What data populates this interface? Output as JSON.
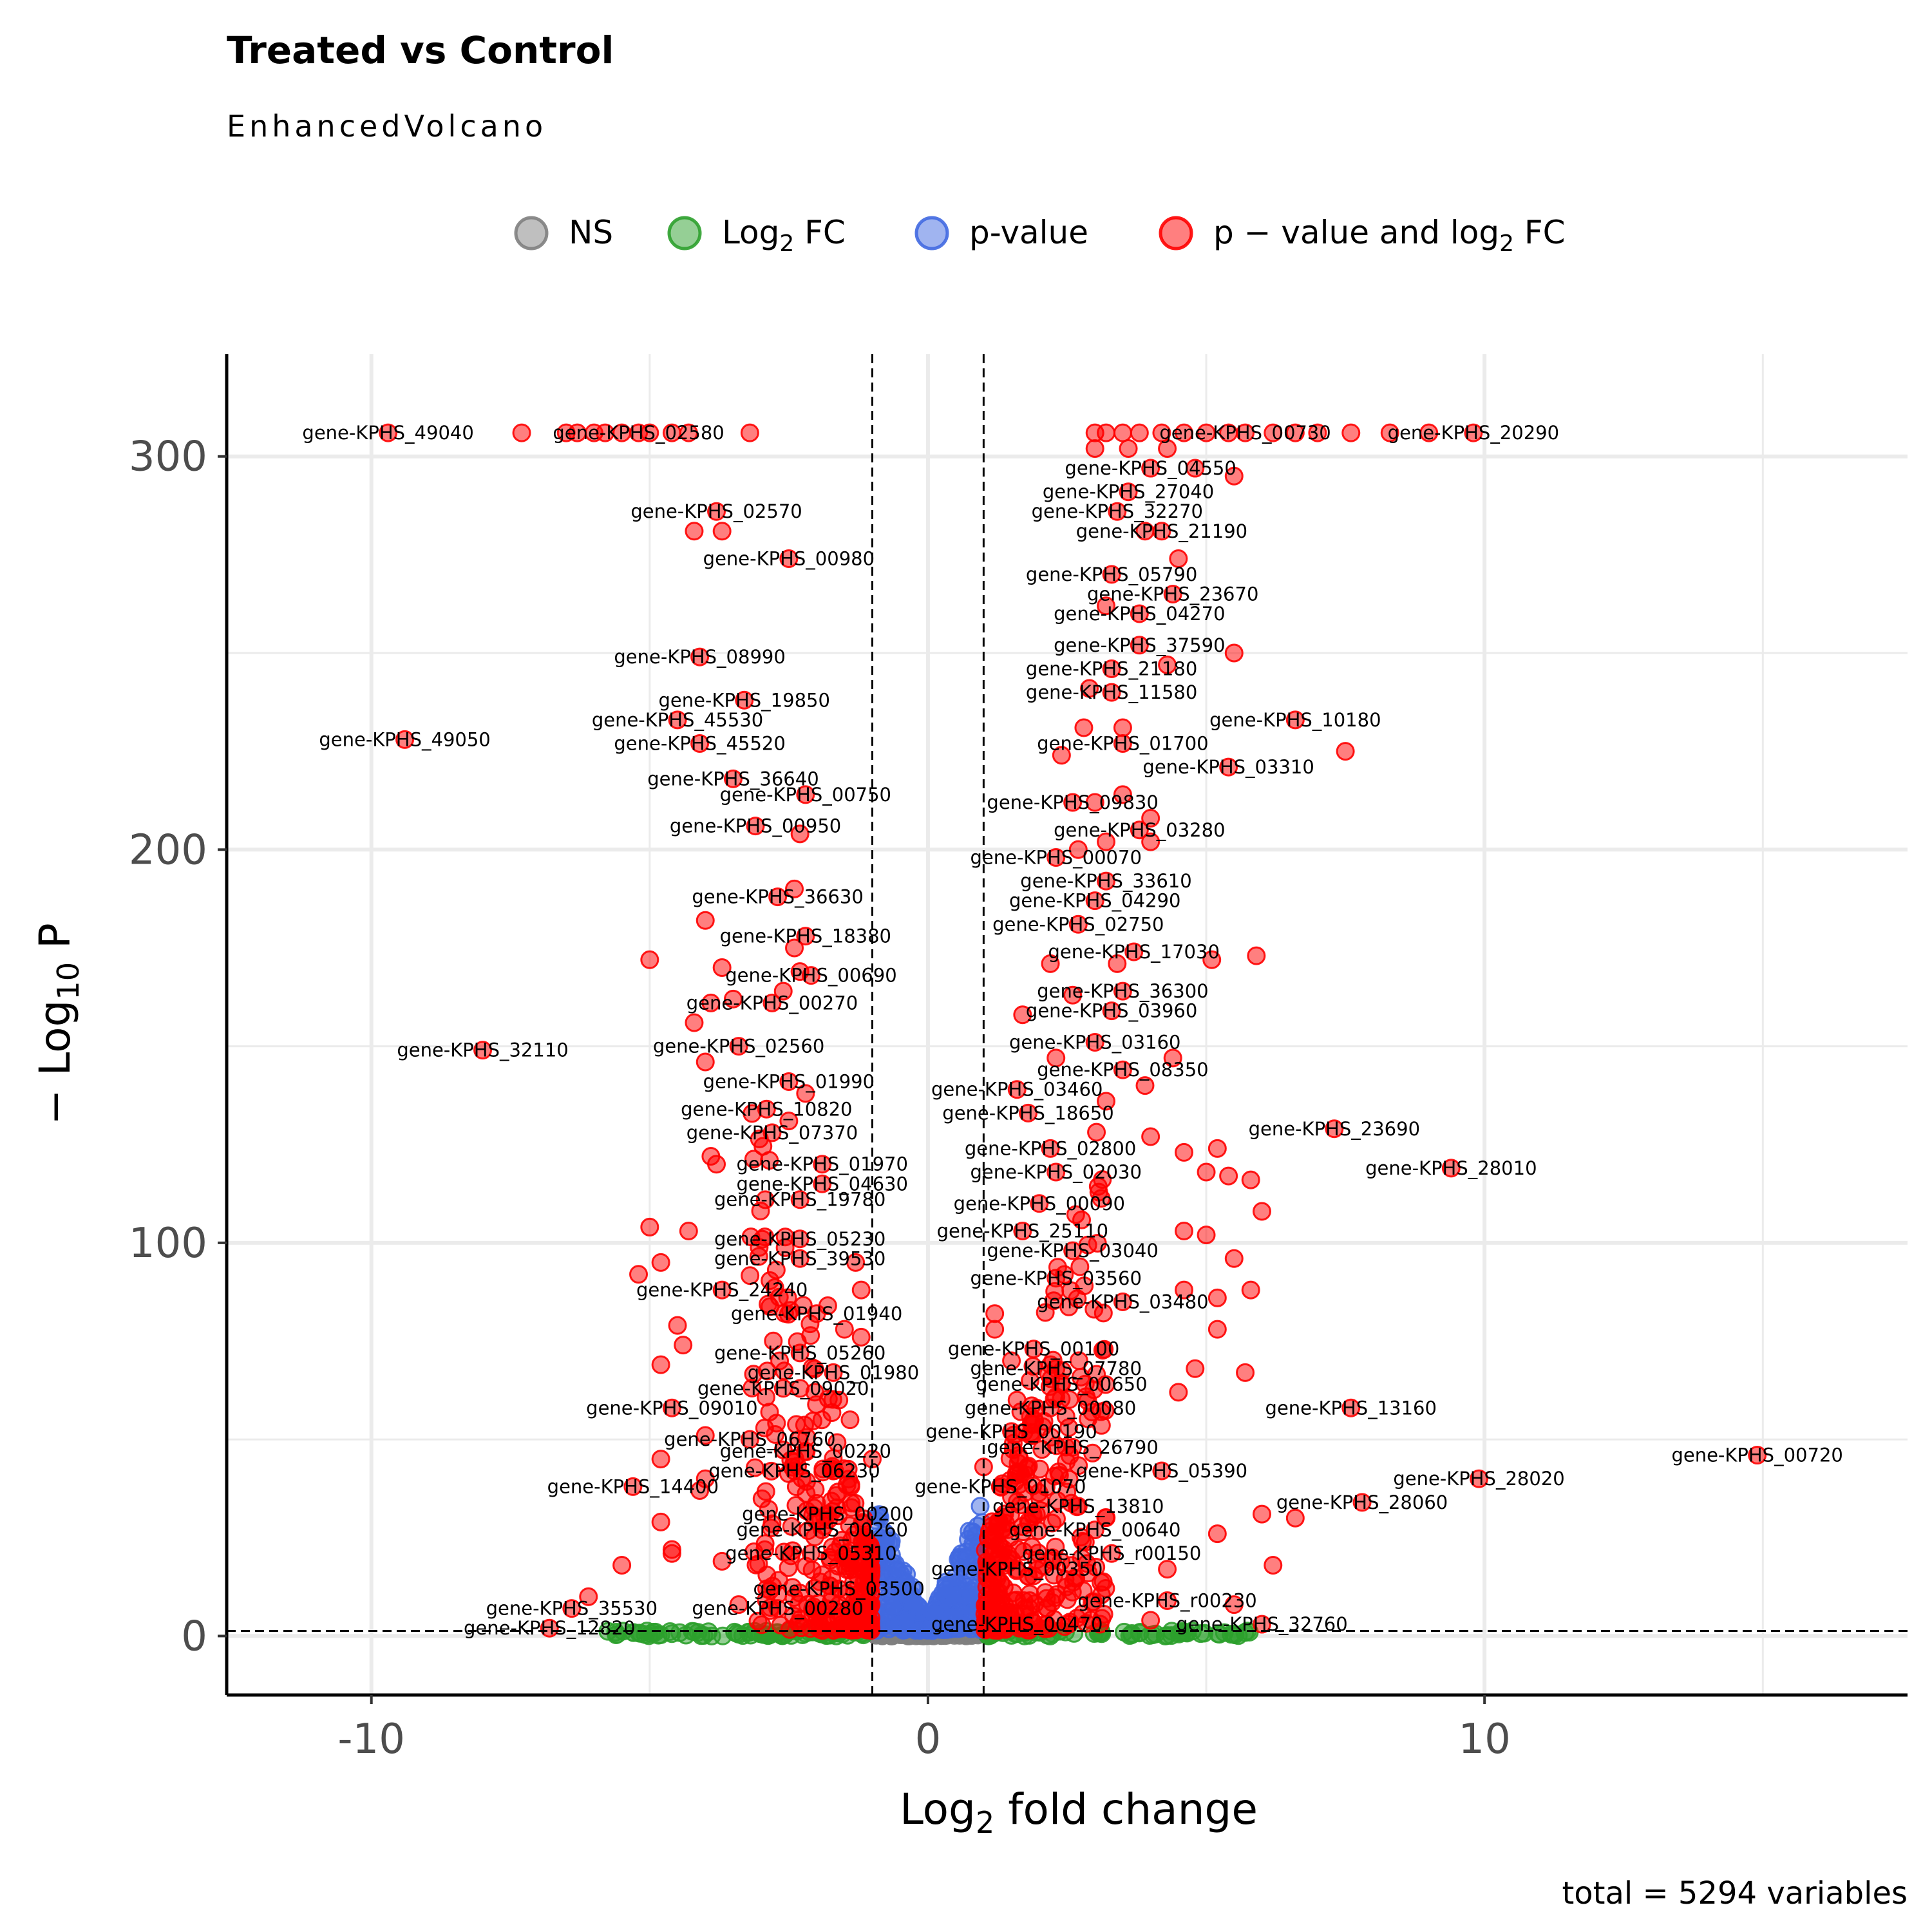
{
  "chart_data": {
    "type": "scatter",
    "title": "Treated vs Control",
    "subtitle": "EnhancedVolcano",
    "caption": "total = 5294 variables",
    "xlabel": {
      "base": "Log",
      "sub": "2",
      "rest": " fold change"
    },
    "ylabel": {
      "pre": "− Log",
      "sub": "10",
      "rest": " P"
    },
    "xlim": [
      -12.6,
      17.6
    ],
    "ylim": [
      -15,
      326
    ],
    "x_ticks": [
      -10,
      0,
      10
    ],
    "x_tick_labels": [
      "-10",
      "0",
      "10"
    ],
    "x_minor": [
      -5,
      5,
      15
    ],
    "y_ticks": [
      0,
      100,
      200,
      300
    ],
    "y_tick_labels": [
      "0",
      "100",
      "200",
      "300"
    ],
    "y_minor": [
      50,
      150,
      250
    ],
    "grid": true,
    "fc_cutoff": 1,
    "p_cutoff_log": 1.3,
    "colors": {
      "NS": "#808080",
      "FC": "#2ca02c",
      "P": "#4169e1",
      "P_FC": "#ff0000"
    },
    "legend": {
      "position": "top",
      "items": [
        {
          "key": "NS",
          "base": "NS",
          "sub": "",
          "rest": ""
        },
        {
          "key": "FC",
          "base": "Log",
          "sub": "2",
          "rest": " FC"
        },
        {
          "key": "P",
          "base": "p-value",
          "sub": "",
          "rest": ""
        },
        {
          "key": "P_FC",
          "base": "p − value and log",
          "sub": "2",
          "rest": " FC"
        }
      ]
    },
    "labeled_points": [
      {
        "label": "gene-KPHS_49040",
        "x": -9.7,
        "y": 306
      },
      {
        "label": "gene-KPHS_02580",
        "x": -5.2,
        "y": 306
      },
      {
        "label": "gene-KPHS_00730",
        "x": 5.7,
        "y": 306
      },
      {
        "label": "gene-KPHS_20290",
        "x": 9.8,
        "y": 306
      },
      {
        "label": "gene-KPHS_04550",
        "x": 4.0,
        "y": 297
      },
      {
        "label": "gene-KPHS_27040",
        "x": 3.6,
        "y": 291
      },
      {
        "label": "gene-KPHS_02570",
        "x": -3.8,
        "y": 286
      },
      {
        "label": "gene-KPHS_32270",
        "x": 3.4,
        "y": 286
      },
      {
        "label": "gene-KPHS_21190",
        "x": 4.2,
        "y": 281
      },
      {
        "label": "gene-KPHS_00980",
        "x": -2.5,
        "y": 274
      },
      {
        "label": "gene-KPHS_05790",
        "x": 3.3,
        "y": 270
      },
      {
        "label": "gene-KPHS_23670",
        "x": 4.4,
        "y": 265
      },
      {
        "label": "gene-KPHS_04270",
        "x": 3.8,
        "y": 260
      },
      {
        "label": "gene-KPHS_37590",
        "x": 3.8,
        "y": 252
      },
      {
        "label": "gene-KPHS_08990",
        "x": -4.1,
        "y": 249
      },
      {
        "label": "gene-KPHS_21180",
        "x": 3.3,
        "y": 246
      },
      {
        "label": "gene-KPHS_11580",
        "x": 3.3,
        "y": 240
      },
      {
        "label": "gene-KPHS_19850",
        "x": -3.3,
        "y": 238
      },
      {
        "label": "gene-KPHS_45530",
        "x": -4.5,
        "y": 233
      },
      {
        "label": "gene-KPHS_10180",
        "x": 6.6,
        "y": 233
      },
      {
        "label": "gene-KPHS_49050",
        "x": -9.4,
        "y": 228
      },
      {
        "label": "gene-KPHS_45520",
        "x": -4.1,
        "y": 227
      },
      {
        "label": "gene-KPHS_01700",
        "x": 3.5,
        "y": 227
      },
      {
        "label": "gene-KPHS_03310",
        "x": 5.4,
        "y": 221
      },
      {
        "label": "gene-KPHS_36640",
        "x": -3.5,
        "y": 218
      },
      {
        "label": "gene-KPHS_00750",
        "x": -2.2,
        "y": 214
      },
      {
        "label": "gene-KPHS_09830",
        "x": 2.6,
        "y": 212
      },
      {
        "label": "gene-KPHS_00950",
        "x": -3.1,
        "y": 206
      },
      {
        "label": "gene-KPHS_03280",
        "x": 3.8,
        "y": 205
      },
      {
        "label": "gene-KPHS_00070",
        "x": 2.3,
        "y": 198
      },
      {
        "label": "gene-KPHS_33610",
        "x": 3.2,
        "y": 192
      },
      {
        "label": "gene-KPHS_36630",
        "x": -2.7,
        "y": 188
      },
      {
        "label": "gene-KPHS_04290",
        "x": 3.0,
        "y": 187
      },
      {
        "label": "gene-KPHS_02750",
        "x": 2.7,
        "y": 181
      },
      {
        "label": "gene-KPHS_18380",
        "x": -2.2,
        "y": 178
      },
      {
        "label": "gene-KPHS_17030",
        "x": 3.7,
        "y": 174
      },
      {
        "label": "gene-KPHS_00690",
        "x": -2.1,
        "y": 168
      },
      {
        "label": "gene-KPHS_36300",
        "x": 3.5,
        "y": 164
      },
      {
        "label": "gene-KPHS_00270",
        "x": -2.8,
        "y": 161
      },
      {
        "label": "gene-KPHS_03960",
        "x": 3.3,
        "y": 159
      },
      {
        "label": "gene-KPHS_32110",
        "x": -8.0,
        "y": 149
      },
      {
        "label": "gene-KPHS_02560",
        "x": -3.4,
        "y": 150
      },
      {
        "label": "gene-KPHS_03160",
        "x": 3.0,
        "y": 151
      },
      {
        "label": "gene-KPHS_08350",
        "x": 3.5,
        "y": 144
      },
      {
        "label": "gene-KPHS_01990",
        "x": -2.5,
        "y": 141
      },
      {
        "label": "gene-KPHS_03460",
        "x": 1.6,
        "y": 139
      },
      {
        "label": "gene-KPHS_10820",
        "x": -2.9,
        "y": 134
      },
      {
        "label": "gene-KPHS_18650",
        "x": 1.8,
        "y": 133
      },
      {
        "label": "gene-KPHS_23690",
        "x": 7.3,
        "y": 129
      },
      {
        "label": "gene-KPHS_07370",
        "x": -2.8,
        "y": 128
      },
      {
        "label": "gene-KPHS_02800",
        "x": 2.2,
        "y": 124
      },
      {
        "label": "gene-KPHS_01970",
        "x": -1.9,
        "y": 120
      },
      {
        "label": "gene-KPHS_02030",
        "x": 2.3,
        "y": 118
      },
      {
        "label": "gene-KPHS_28010",
        "x": 9.4,
        "y": 119
      },
      {
        "label": "gene-KPHS_04630",
        "x": -1.9,
        "y": 115
      },
      {
        "label": "gene-KPHS_19780",
        "x": -2.3,
        "y": 111
      },
      {
        "label": "gene-KPHS_00090",
        "x": 2.0,
        "y": 110
      },
      {
        "label": "gene-KPHS_25110",
        "x": 1.7,
        "y": 103
      },
      {
        "label": "gene-KPHS_05230",
        "x": -2.3,
        "y": 101
      },
      {
        "label": "gene-KPHS_03040",
        "x": 2.6,
        "y": 98
      },
      {
        "label": "gene-KPHS_39530",
        "x": -2.3,
        "y": 96
      },
      {
        "label": "gene-KPHS_03560",
        "x": 2.3,
        "y": 91
      },
      {
        "label": "gene-KPHS_24240",
        "x": -3.7,
        "y": 88
      },
      {
        "label": "gene-KPHS_03480",
        "x": 3.5,
        "y": 85
      },
      {
        "label": "gene-KPHS_01940",
        "x": -2.0,
        "y": 82
      },
      {
        "label": "gene-KPHS_00100",
        "x": 1.9,
        "y": 73
      },
      {
        "label": "gene-KPHS_05260",
        "x": -2.3,
        "y": 72
      },
      {
        "label": "gene-KPHS_07780",
        "x": 2.3,
        "y": 68
      },
      {
        "label": "gene-KPHS_01980",
        "x": -1.7,
        "y": 67
      },
      {
        "label": "gene-KPHS_00650",
        "x": 2.4,
        "y": 64
      },
      {
        "label": "gene-KPHS_09020",
        "x": -2.6,
        "y": 63
      },
      {
        "label": "gene-KPHS_09010",
        "x": -4.6,
        "y": 58
      },
      {
        "label": "gene-KPHS_00080",
        "x": 2.2,
        "y": 58
      },
      {
        "label": "gene-KPHS_13160",
        "x": 7.6,
        "y": 58
      },
      {
        "label": "gene-KPHS_00190",
        "x": 1.5,
        "y": 52
      },
      {
        "label": "gene-KPHS_06760",
        "x": -3.2,
        "y": 50
      },
      {
        "label": "gene-KPHS_26790",
        "x": 2.6,
        "y": 48
      },
      {
        "label": "gene-KPHS_00220",
        "x": -2.2,
        "y": 47
      },
      {
        "label": "gene-KPHS_00720",
        "x": 14.9,
        "y": 46
      },
      {
        "label": "gene-KPHS_05390",
        "x": 4.2,
        "y": 42
      },
      {
        "label": "gene-KPHS_06230",
        "x": -2.4,
        "y": 42
      },
      {
        "label": "gene-KPHS_28020",
        "x": 9.9,
        "y": 40
      },
      {
        "label": "gene-KPHS_01070",
        "x": 1.3,
        "y": 38
      },
      {
        "label": "gene-KPHS_14400",
        "x": -5.3,
        "y": 38
      },
      {
        "label": "gene-KPHS_28060",
        "x": 7.8,
        "y": 34
      },
      {
        "label": "gene-KPHS_13810",
        "x": 2.7,
        "y": 33
      },
      {
        "label": "gene-KPHS_00200",
        "x": -1.8,
        "y": 31
      },
      {
        "label": "gene-KPHS_00260",
        "x": -1.9,
        "y": 27
      },
      {
        "label": "gene-KPHS_00640",
        "x": 3.0,
        "y": 27
      },
      {
        "label": "gene-KPHS_05310",
        "x": -2.1,
        "y": 21
      },
      {
        "label": "gene-KPHS_r00150",
        "x": 3.3,
        "y": 21
      },
      {
        "label": "gene-KPHS_00350",
        "x": 1.6,
        "y": 17
      },
      {
        "label": "gene-KPHS_03500",
        "x": -1.6,
        "y": 12
      },
      {
        "label": "gene-KPHS_r00230",
        "x": 4.3,
        "y": 9
      },
      {
        "label": "gene-KPHS_00280",
        "x": -2.7,
        "y": 7
      },
      {
        "label": "gene-KPHS_35530",
        "x": -6.4,
        "y": 7
      },
      {
        "label": "gene-KPHS_00470",
        "x": 1.6,
        "y": 3
      },
      {
        "label": "gene-KPHS_32760",
        "x": 6.0,
        "y": 3
      },
      {
        "label": "gene-KPHS_12820",
        "x": -6.8,
        "y": 2
      }
    ],
    "extra_points": [
      [
        -7.3,
        306
      ],
      [
        -6.5,
        306
      ],
      [
        -6.3,
        306
      ],
      [
        -6.0,
        306
      ],
      [
        -5.8,
        306
      ],
      [
        -5.5,
        306
      ],
      [
        -5.0,
        306
      ],
      [
        -4.6,
        306
      ],
      [
        -4.3,
        306
      ],
      [
        -3.2,
        306
      ],
      [
        3.0,
        306
      ],
      [
        3.2,
        306
      ],
      [
        3.5,
        306
      ],
      [
        3.8,
        306
      ],
      [
        4.2,
        306
      ],
      [
        4.6,
        306
      ],
      [
        5.0,
        306
      ],
      [
        5.4,
        306
      ],
      [
        6.2,
        306
      ],
      [
        6.6,
        306
      ],
      [
        7.0,
        306
      ],
      [
        7.6,
        306
      ],
      [
        8.3,
        306
      ],
      [
        9.0,
        306
      ],
      [
        3.0,
        302
      ],
      [
        3.6,
        302
      ],
      [
        4.3,
        302
      ],
      [
        4.8,
        297
      ],
      [
        5.5,
        295
      ],
      [
        3.9,
        281
      ],
      [
        4.5,
        274
      ],
      [
        3.2,
        262
      ],
      [
        5.5,
        250
      ],
      [
        4.3,
        247
      ],
      [
        2.9,
        241
      ],
      [
        -4.2,
        281
      ],
      [
        -3.7,
        281
      ],
      [
        2.8,
        231
      ],
      [
        3.5,
        231
      ],
      [
        2.4,
        224
      ],
      [
        7.5,
        225
      ],
      [
        3.0,
        212
      ],
      [
        3.5,
        214
      ],
      [
        4.0,
        208
      ],
      [
        2.7,
        200
      ],
      [
        3.2,
        202
      ],
      [
        4.0,
        202
      ],
      [
        -2.3,
        204
      ],
      [
        -2.4,
        190
      ],
      [
        -4.0,
        182
      ],
      [
        -2.4,
        175
      ],
      [
        -5.0,
        172
      ],
      [
        5.1,
        172
      ],
      [
        5.9,
        173
      ],
      [
        2.2,
        171
      ],
      [
        3.4,
        171
      ],
      [
        -3.7,
        170
      ],
      [
        -2.3,
        169
      ],
      [
        -2.6,
        164
      ],
      [
        -3.9,
        161
      ],
      [
        -3.5,
        162
      ],
      [
        -4.2,
        156
      ],
      [
        2.6,
        163
      ],
      [
        1.7,
        158
      ],
      [
        4.4,
        147
      ],
      [
        3.9,
        140
      ],
      [
        -4.0,
        146
      ],
      [
        -2.2,
        138
      ],
      [
        2.3,
        147
      ],
      [
        -2.5,
        131
      ],
      [
        3.2,
        136
      ],
      [
        4.0,
        127
      ],
      [
        5.2,
        124
      ],
      [
        4.6,
        123
      ],
      [
        -3.9,
        122
      ],
      [
        -3.8,
        120
      ],
      [
        5.4,
        117
      ],
      [
        5.0,
        118
      ],
      [
        5.8,
        116
      ],
      [
        6.0,
        108
      ],
      [
        -5.0,
        104
      ],
      [
        -4.3,
        103
      ],
      [
        4.6,
        103
      ],
      [
        5.0,
        102
      ],
      [
        5.5,
        96
      ],
      [
        5.8,
        88
      ],
      [
        -5.2,
        92
      ],
      [
        -4.8,
        95
      ],
      [
        -4.5,
        79
      ],
      [
        4.6,
        88
      ],
      [
        5.2,
        86
      ],
      [
        5.2,
        78
      ],
      [
        -4.4,
        74
      ],
      [
        5.7,
        67
      ],
      [
        4.8,
        68
      ],
      [
        -4.8,
        69
      ],
      [
        4.5,
        62
      ],
      [
        -4.0,
        51
      ],
      [
        -4.8,
        45
      ],
      [
        -4.0,
        40
      ],
      [
        -4.1,
        37
      ],
      [
        -4.8,
        29
      ],
      [
        -4.6,
        21
      ],
      [
        -4.6,
        22
      ],
      [
        -3.7,
        19
      ],
      [
        -5.5,
        18
      ],
      [
        6.0,
        31
      ],
      [
        6.6,
        30
      ],
      [
        5.2,
        26
      ],
      [
        6.2,
        18
      ],
      [
        4.3,
        17
      ],
      [
        5.5,
        8
      ],
      [
        -6.1,
        10
      ],
      [
        -3.4,
        8
      ],
      [
        4.0,
        4
      ],
      [
        -1.3,
        95
      ],
      [
        -1.2,
        88
      ],
      [
        -1.8,
        84
      ],
      [
        -1.5,
        78
      ],
      [
        -1.2,
        76
      ],
      [
        1.2,
        82
      ],
      [
        1.2,
        78
      ],
      [
        1.5,
        70
      ],
      [
        -1.6,
        60
      ],
      [
        -1.4,
        55
      ],
      [
        1.6,
        60
      ],
      [
        1.9,
        55
      ],
      [
        -1.0,
        45
      ],
      [
        1.0,
        43
      ]
    ]
  }
}
